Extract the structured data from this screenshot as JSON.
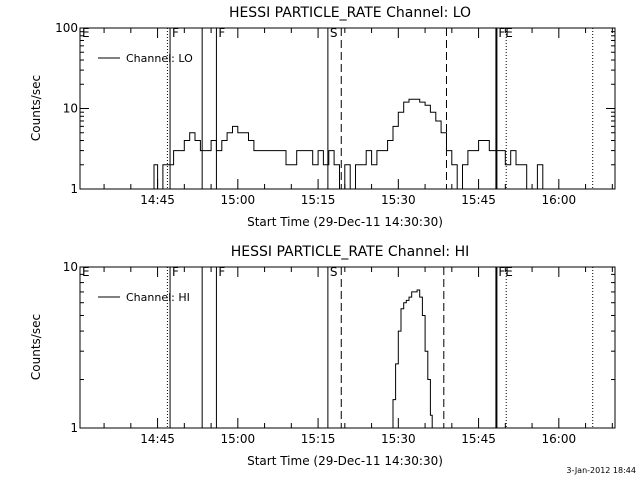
{
  "chart_data": [
    {
      "type": "line",
      "title": "HESSI PARTICLE_RATE Channel: LO",
      "xlabel": "Start Time (29-Dec-11 14:30:30)",
      "ylabel": "Counts/sec",
      "yscale": "log",
      "xlim": [
        "14:30:30",
        "16:10:30"
      ],
      "ylim": [
        1,
        100
      ],
      "xticks": [
        "14:45",
        "15:00",
        "15:15",
        "15:30",
        "15:45",
        "16:00"
      ],
      "yticks": [
        "1",
        "10",
        "100"
      ],
      "grid": false,
      "legend": {
        "placement": "top-left",
        "entries": [
          "Channel: LO"
        ]
      },
      "markers": [
        {
          "label": "E",
          "time": "14:30:30",
          "style": "solid"
        },
        {
          "label": "",
          "time": "14:46:50",
          "style": "dotted"
        },
        {
          "label": "F",
          "time": "14:47:20",
          "style": "solid"
        },
        {
          "label": "",
          "time": "14:53:20",
          "style": "solid"
        },
        {
          "label": "F",
          "time": "14:56:00",
          "style": "solid"
        },
        {
          "label": "S",
          "time": "15:16:50",
          "style": "solid"
        },
        {
          "label": "",
          "time": "15:19:20",
          "style": "dashed"
        },
        {
          "label": "",
          "time": "15:39:00",
          "style": "dashed"
        },
        {
          "label": "FE",
          "time": "15:48:20",
          "style": "solid-thick"
        },
        {
          "label": "",
          "time": "15:50:10",
          "style": "dotted"
        },
        {
          "label": "",
          "time": "16:06:20",
          "style": "dotted"
        }
      ],
      "series": [
        {
          "name": "Channel: LO",
          "x": [
            "14:44:00",
            "14:44:20",
            "14:45:00",
            "14:46:00",
            "14:47:00",
            "14:48:00",
            "14:49:00",
            "14:50:00",
            "14:51:00",
            "14:52:00",
            "14:53:00",
            "14:54:00",
            "14:55:00",
            "14:56:00",
            "14:57:00",
            "14:58:00",
            "14:59:00",
            "15:00:00",
            "15:01:00",
            "15:02:00",
            "15:03:00",
            "15:05:00",
            "15:07:00",
            "15:09:00",
            "15:11:00",
            "15:13:00",
            "15:14:00",
            "15:15:00",
            "15:16:00",
            "15:17:00",
            "15:18:00",
            "15:19:00",
            "15:20:00",
            "15:21:00",
            "15:22:00",
            "15:23:00",
            "15:24:00",
            "15:25:00",
            "15:26:00",
            "15:27:00",
            "15:28:00",
            "15:29:00",
            "15:30:00",
            "15:31:00",
            "15:32:00",
            "15:33:00",
            "15:34:00",
            "15:35:00",
            "15:36:00",
            "15:37:00",
            "15:38:00",
            "15:39:00",
            "15:40:00",
            "15:41:00",
            "15:42:00",
            "15:43:00",
            "15:44:00",
            "15:45:00",
            "15:46:00",
            "15:47:00",
            "15:48:00",
            "15:49:00",
            "15:50:00",
            "15:51:00",
            "15:52:00",
            "15:53:00",
            "15:54:00",
            "15:55:00",
            "15:56:00",
            "15:57:00"
          ],
          "values": [
            1,
            2,
            1,
            2,
            2,
            3,
            3,
            4,
            5,
            4,
            3,
            3,
            4,
            3,
            4,
            5,
            6,
            5,
            5,
            4,
            3,
            3,
            3,
            2,
            3,
            3,
            2,
            3,
            2,
            3,
            2,
            1,
            2,
            1,
            2,
            2,
            3,
            2,
            3,
            3,
            4,
            6,
            9,
            12,
            13,
            13,
            12,
            11,
            9,
            7,
            5,
            3,
            2,
            1,
            2,
            3,
            3,
            4,
            4,
            3,
            3,
            3,
            2,
            3,
            2,
            2,
            1,
            1,
            2,
            1
          ]
        }
      ]
    },
    {
      "type": "line",
      "title": "HESSI PARTICLE_RATE Channel: HI",
      "xlabel": "Start Time (29-Dec-11 14:30:30)",
      "ylabel": "Counts/sec",
      "yscale": "log",
      "xlim": [
        "14:30:30",
        "16:10:30"
      ],
      "ylim": [
        1,
        10
      ],
      "xticks": [
        "14:45",
        "15:00",
        "15:15",
        "15:30",
        "15:45",
        "16:00"
      ],
      "yticks": [
        "1",
        "10"
      ],
      "grid": false,
      "legend": {
        "placement": "top-left",
        "entries": [
          "Channel: HI"
        ]
      },
      "markers": [
        {
          "label": "E",
          "time": "14:30:30",
          "style": "solid"
        },
        {
          "label": "",
          "time": "14:46:50",
          "style": "dotted"
        },
        {
          "label": "F",
          "time": "14:47:20",
          "style": "solid"
        },
        {
          "label": "",
          "time": "14:53:20",
          "style": "solid"
        },
        {
          "label": "F",
          "time": "14:56:00",
          "style": "solid"
        },
        {
          "label": "S",
          "time": "15:16:50",
          "style": "solid"
        },
        {
          "label": "",
          "time": "15:19:20",
          "style": "dashed"
        },
        {
          "label": "",
          "time": "15:38:30",
          "style": "dashed"
        },
        {
          "label": "FE",
          "time": "15:48:20",
          "style": "solid-thick"
        },
        {
          "label": "",
          "time": "15:50:10",
          "style": "dotted"
        },
        {
          "label": "",
          "time": "16:06:20",
          "style": "dotted"
        }
      ],
      "series": [
        {
          "name": "Channel: HI",
          "x": [
            "15:28:40",
            "15:29:00",
            "15:29:30",
            "15:30:00",
            "15:30:30",
            "15:31:00",
            "15:31:30",
            "15:32:00",
            "15:32:30",
            "15:33:00",
            "15:33:30",
            "15:34:00",
            "15:34:30",
            "15:35:00",
            "15:35:30",
            "15:36:00",
            "15:36:20"
          ],
          "values": [
            1,
            1.5,
            2.5,
            4,
            5.5,
            6,
            6.2,
            6.5,
            7,
            7,
            7.2,
            6.5,
            5,
            3,
            2,
            1.2,
            1
          ]
        }
      ]
    }
  ],
  "footer": {
    "timestamp": "3-Jan-2012 18:44"
  }
}
